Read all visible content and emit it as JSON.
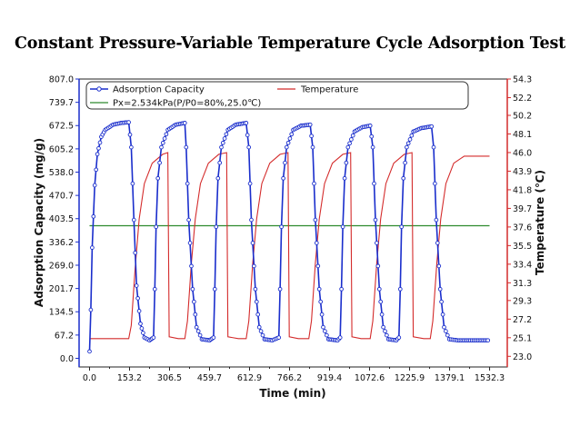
{
  "title": "Constant Pressure-Variable Temperature Cycle Adsorption Test",
  "chart_data": {
    "type": "line",
    "title": "Constant Pressure-Variable Temperature Cycle Adsorption Test",
    "xlabel": "Time (min)",
    "ylabel_left": "Adsorption Capacity (mg/g)",
    "ylabel_right": "Temperature (℃)",
    "xlim": [
      -40,
      1600
    ],
    "ylim_left": [
      -25,
      807
    ],
    "ylim_right": [
      21.8,
      54.3
    ],
    "x_ticks": [
      "0.0",
      "153.2",
      "306.5",
      "459.7",
      "612.9",
      "766.2",
      "919.4",
      "1072.6",
      "1225.9",
      "1379.1",
      "1532.3"
    ],
    "y_left_ticks": [
      "807.0",
      "739.7",
      "672.5",
      "605.2",
      "538.0",
      "470.7",
      "403.5",
      "336.2",
      "269.0",
      "201.7",
      "134.5",
      "67.2",
      "0.0"
    ],
    "y_right_ticks": [
      "54.3",
      "52.2",
      "50.2",
      "48.1",
      "46.0",
      "43.9",
      "41.8",
      "39.7",
      "37.6",
      "35.5",
      "33.4",
      "31.3",
      "29.3",
      "27.2",
      "25.1",
      "23.0"
    ],
    "legend": {
      "position": "top",
      "entries": [
        "Adsorption Capacity",
        "Temperature",
        "Px=2.534kPa(P/P0=80%,25.0℃)"
      ]
    },
    "cycles": {
      "count": 5,
      "period_min": 306.5,
      "adsorption_start_min": 0,
      "desorption_start_min": [
        150,
        310,
        455,
        605,
        890
      ],
      "adsorption_restart_min": [
        222,
        375,
        528,
        684,
        840
      ]
    },
    "series": [
      {
        "name": "Adsorption Capacity",
        "axis": "left",
        "color": "#1a2ecc",
        "marker": "circle",
        "points": [
          [
            0,
            20
          ],
          [
            5,
            140
          ],
          [
            10,
            320
          ],
          [
            20,
            500
          ],
          [
            30,
            590
          ],
          [
            45,
            640
          ],
          [
            60,
            660
          ],
          [
            90,
            675
          ],
          [
            120,
            680
          ],
          [
            150,
            682
          ],
          [
            160,
            610
          ],
          [
            170,
            400
          ],
          [
            180,
            210
          ],
          [
            195,
            100
          ],
          [
            210,
            60
          ],
          [
            230,
            52
          ],
          [
            245,
            60
          ],
          [
            250,
            200
          ],
          [
            255,
            380
          ],
          [
            262,
            520
          ],
          [
            275,
            610
          ],
          [
            300,
            660
          ],
          [
            330,
            675
          ],
          [
            365,
            680
          ],
          [
            370,
            610
          ],
          [
            380,
            400
          ],
          [
            395,
            200
          ],
          [
            410,
            90
          ],
          [
            430,
            55
          ],
          [
            460,
            52
          ],
          [
            475,
            60
          ],
          [
            480,
            200
          ],
          [
            485,
            380
          ],
          [
            492,
            520
          ],
          [
            505,
            610
          ],
          [
            530,
            660
          ],
          [
            560,
            675
          ],
          [
            600,
            680
          ],
          [
            610,
            610
          ],
          [
            620,
            400
          ],
          [
            635,
            200
          ],
          [
            650,
            90
          ],
          [
            670,
            55
          ],
          [
            700,
            52
          ],
          [
            725,
            60
          ],
          [
            730,
            200
          ],
          [
            735,
            380
          ],
          [
            742,
            520
          ],
          [
            755,
            610
          ],
          [
            780,
            660
          ],
          [
            810,
            672
          ],
          [
            845,
            675
          ],
          [
            855,
            610
          ],
          [
            865,
            400
          ],
          [
            880,
            200
          ],
          [
            895,
            90
          ],
          [
            915,
            55
          ],
          [
            950,
            52
          ],
          [
            960,
            60
          ],
          [
            965,
            200
          ],
          [
            970,
            380
          ],
          [
            977,
            520
          ],
          [
            990,
            610
          ],
          [
            1015,
            655
          ],
          [
            1045,
            668
          ],
          [
            1075,
            672
          ],
          [
            1085,
            610
          ],
          [
            1095,
            400
          ],
          [
            1110,
            200
          ],
          [
            1125,
            90
          ],
          [
            1145,
            55
          ],
          [
            1175,
            52
          ],
          [
            1185,
            60
          ],
          [
            1190,
            200
          ],
          [
            1195,
            380
          ],
          [
            1202,
            520
          ],
          [
            1215,
            610
          ],
          [
            1240,
            655
          ],
          [
            1270,
            665
          ],
          [
            1310,
            670
          ],
          [
            1318,
            610
          ],
          [
            1328,
            400
          ],
          [
            1343,
            200
          ],
          [
            1358,
            90
          ],
          [
            1378,
            55
          ],
          [
            1410,
            52
          ],
          [
            1532,
            52
          ]
        ]
      },
      {
        "name": "Temperature",
        "axis": "right",
        "color": "#d42b2b",
        "points": [
          [
            0,
            25.0
          ],
          [
            150,
            25.0
          ],
          [
            160,
            26.5
          ],
          [
            175,
            33.0
          ],
          [
            190,
            38.5
          ],
          [
            210,
            42.5
          ],
          [
            240,
            44.8
          ],
          [
            280,
            45.8
          ],
          [
            300,
            46.0
          ],
          [
            305,
            25.2
          ],
          [
            340,
            25.0
          ],
          [
            365,
            25.0
          ],
          [
            375,
            27.0
          ],
          [
            390,
            33.5
          ],
          [
            405,
            38.5
          ],
          [
            425,
            42.5
          ],
          [
            455,
            44.8
          ],
          [
            495,
            45.8
          ],
          [
            525,
            46.0
          ],
          [
            530,
            25.2
          ],
          [
            570,
            25.0
          ],
          [
            600,
            25.0
          ],
          [
            610,
            27.0
          ],
          [
            625,
            33.5
          ],
          [
            640,
            38.5
          ],
          [
            660,
            42.5
          ],
          [
            690,
            44.8
          ],
          [
            730,
            45.8
          ],
          [
            760,
            46.0
          ],
          [
            765,
            25.2
          ],
          [
            800,
            25.0
          ],
          [
            840,
            25.0
          ],
          [
            850,
            27.0
          ],
          [
            865,
            33.5
          ],
          [
            880,
            38.5
          ],
          [
            900,
            42.5
          ],
          [
            930,
            44.8
          ],
          [
            970,
            45.8
          ],
          [
            1000,
            46.0
          ],
          [
            1005,
            25.2
          ],
          [
            1040,
            25.0
          ],
          [
            1075,
            25.0
          ],
          [
            1085,
            27.0
          ],
          [
            1100,
            33.5
          ],
          [
            1115,
            38.5
          ],
          [
            1135,
            42.5
          ],
          [
            1165,
            44.8
          ],
          [
            1205,
            45.8
          ],
          [
            1235,
            46.0
          ],
          [
            1240,
            25.2
          ],
          [
            1280,
            25.0
          ],
          [
            1305,
            25.0
          ],
          [
            1315,
            27.0
          ],
          [
            1330,
            33.5
          ],
          [
            1345,
            38.5
          ],
          [
            1365,
            42.5
          ],
          [
            1395,
            44.8
          ],
          [
            1435,
            45.6
          ],
          [
            1532,
            45.6
          ]
        ]
      },
      {
        "name": "Px=2.534kPa(P/P0=80%,25.0℃)",
        "axis": "left",
        "color": "#2e8b2e",
        "points": [
          [
            0,
            383
          ],
          [
            1532,
            383
          ]
        ]
      }
    ]
  }
}
